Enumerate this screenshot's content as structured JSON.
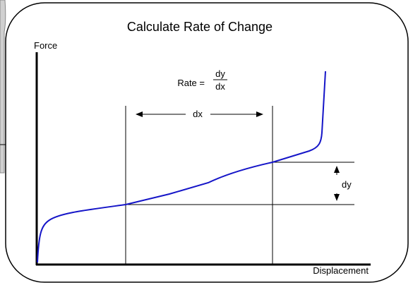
{
  "title": "Calculate Rate of Change",
  "axes": {
    "y_label": "Force",
    "x_label": "Displacement"
  },
  "formula": {
    "prefix": "Rate =",
    "numerator": "dy",
    "denominator": "dx"
  },
  "annotations": {
    "dx": "dx",
    "dy": "dy"
  }
}
